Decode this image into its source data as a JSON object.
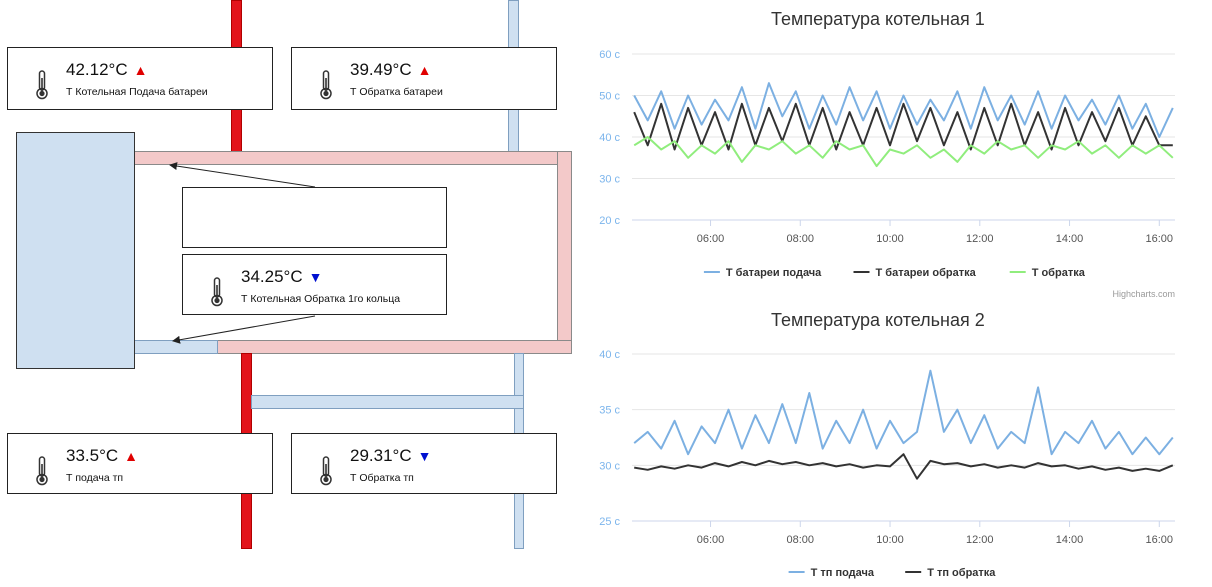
{
  "scheme": {
    "sensors": [
      {
        "value": "42.12°C",
        "trend": "up",
        "label": "Т Котельная Подача батареи"
      },
      {
        "value": "39.49°C",
        "trend": "up",
        "label": "Т Обратка батареи"
      },
      {
        "value": "34.25°C",
        "trend": "down",
        "label": "Т Котельная Обратка 1го кольца"
      },
      {
        "value": "33.5°C",
        "trend": "up",
        "label": "Т подача тп"
      },
      {
        "value": "29.31°C",
        "trend": "down",
        "label": "Т Обратка тп"
      }
    ],
    "trend_symbols": {
      "up": "▲",
      "down": "▼"
    },
    "colors": {
      "hot_pipe": "#e3141b",
      "cold_pipe": "#cfe0f1",
      "loop_pipe": "#f3c9c9",
      "boiler": "#cfe0f1",
      "trend_up": "#e00000",
      "trend_down": "#0010d0"
    }
  },
  "credits": "Highcharts.com",
  "chart_data": [
    {
      "type": "line",
      "title": "Температура котельная 1",
      "ylabel": "",
      "ylim": [
        20,
        60
      ],
      "yticks": [
        20,
        30,
        40,
        50,
        60
      ],
      "ytick_labels": [
        "20 c",
        "30 c",
        "40 c",
        "50 c",
        "60 c"
      ],
      "xlim": [
        4.25,
        16.35
      ],
      "xticks": [
        6,
        8,
        10,
        12,
        14,
        16
      ],
      "xtick_labels": [
        "06:00",
        "08:00",
        "10:00",
        "12:00",
        "14:00",
        "16:00"
      ],
      "legend": "bottom-center",
      "grid": true,
      "series": [
        {
          "name": "Т батареи подача",
          "color": "#7cb0e2",
          "x": [
            4.3,
            4.6,
            4.9,
            5.2,
            5.5,
            5.8,
            6.1,
            6.4,
            6.7,
            7.0,
            7.3,
            7.6,
            7.9,
            8.2,
            8.5,
            8.8,
            9.1,
            9.4,
            9.7,
            10.0,
            10.3,
            10.6,
            10.9,
            11.2,
            11.5,
            11.8,
            12.1,
            12.4,
            12.7,
            13.0,
            13.3,
            13.6,
            13.9,
            14.2,
            14.5,
            14.8,
            15.1,
            15.4,
            15.7,
            16.0,
            16.3
          ],
          "y": [
            50,
            44,
            51,
            42,
            50,
            43,
            49,
            44,
            52,
            42,
            53,
            45,
            51,
            42,
            50,
            43,
            52,
            44,
            51,
            42,
            50,
            43,
            49,
            44,
            51,
            42,
            52,
            44,
            50,
            43,
            51,
            42,
            50,
            44,
            49,
            43,
            50,
            42,
            48,
            40,
            47
          ]
        },
        {
          "name": "Т батареи обратка",
          "color": "#333333",
          "x": [
            4.3,
            4.6,
            4.9,
            5.2,
            5.5,
            5.8,
            6.1,
            6.4,
            6.7,
            7.0,
            7.3,
            7.6,
            7.9,
            8.2,
            8.5,
            8.8,
            9.1,
            9.4,
            9.7,
            10.0,
            10.3,
            10.6,
            10.9,
            11.2,
            11.5,
            11.8,
            12.1,
            12.4,
            12.7,
            13.0,
            13.3,
            13.6,
            13.9,
            14.2,
            14.5,
            14.8,
            15.1,
            15.4,
            15.7,
            16.0,
            16.3
          ],
          "y": [
            46,
            38,
            48,
            37,
            47,
            38,
            46,
            37,
            48,
            38,
            47,
            39,
            48,
            38,
            47,
            37,
            46,
            38,
            47,
            38,
            48,
            39,
            47,
            38,
            46,
            37,
            47,
            38,
            48,
            38,
            46,
            37,
            47,
            38,
            46,
            39,
            47,
            38,
            45,
            38,
            38
          ]
        },
        {
          "name": "Т обратка",
          "color": "#90ed7d",
          "x": [
            4.3,
            4.6,
            4.9,
            5.2,
            5.5,
            5.8,
            6.1,
            6.4,
            6.7,
            7.0,
            7.3,
            7.6,
            7.9,
            8.2,
            8.5,
            8.8,
            9.1,
            9.4,
            9.7,
            10.0,
            10.3,
            10.6,
            10.9,
            11.2,
            11.5,
            11.8,
            12.1,
            12.4,
            12.7,
            13.0,
            13.3,
            13.6,
            13.9,
            14.2,
            14.5,
            14.8,
            15.1,
            15.4,
            15.7,
            16.0,
            16.3
          ],
          "y": [
            38,
            40,
            37,
            39,
            35,
            38,
            36,
            39,
            34,
            38,
            37,
            39,
            36,
            38,
            35,
            39,
            37,
            38,
            33,
            37,
            36,
            38,
            35,
            37,
            34,
            38,
            36,
            39,
            37,
            38,
            35,
            38,
            37,
            39,
            36,
            38,
            35,
            38,
            36,
            38,
            35
          ]
        }
      ]
    },
    {
      "type": "line",
      "title": "Температура котельная 2",
      "ylabel": "",
      "ylim": [
        25,
        40
      ],
      "yticks": [
        25,
        30,
        35,
        40
      ],
      "ytick_labels": [
        "25 c",
        "30 c",
        "35 c",
        "40 c"
      ],
      "xlim": [
        4.25,
        16.35
      ],
      "xticks": [
        6,
        8,
        10,
        12,
        14,
        16
      ],
      "xtick_labels": [
        "06:00",
        "08:00",
        "10:00",
        "12:00",
        "14:00",
        "16:00"
      ],
      "legend": "bottom-center",
      "grid": true,
      "series": [
        {
          "name": "Т тп подача",
          "color": "#7cb0e2",
          "x": [
            4.3,
            4.6,
            4.9,
            5.2,
            5.5,
            5.8,
            6.1,
            6.4,
            6.7,
            7.0,
            7.3,
            7.6,
            7.9,
            8.2,
            8.5,
            8.8,
            9.1,
            9.4,
            9.7,
            10.0,
            10.3,
            10.6,
            10.9,
            11.2,
            11.5,
            11.8,
            12.1,
            12.4,
            12.7,
            13.0,
            13.3,
            13.6,
            13.9,
            14.2,
            14.5,
            14.8,
            15.1,
            15.4,
            15.7,
            16.0,
            16.3
          ],
          "y": [
            32,
            33,
            31.5,
            34,
            31,
            33.5,
            32,
            35,
            31.5,
            34.5,
            32,
            35.5,
            32,
            36.5,
            31.5,
            34,
            32,
            35,
            31.5,
            34,
            32,
            33,
            38.5,
            33,
            35,
            32,
            34.5,
            31.5,
            33,
            32,
            37,
            31,
            33,
            32,
            34,
            31.5,
            33,
            31,
            32.5,
            31,
            32.5
          ]
        },
        {
          "name": "Т тп обратка",
          "color": "#333333",
          "x": [
            4.3,
            4.6,
            4.9,
            5.2,
            5.5,
            5.8,
            6.1,
            6.4,
            6.7,
            7.0,
            7.3,
            7.6,
            7.9,
            8.2,
            8.5,
            8.8,
            9.1,
            9.4,
            9.7,
            10.0,
            10.3,
            10.6,
            10.9,
            11.2,
            11.5,
            11.8,
            12.1,
            12.4,
            12.7,
            13.0,
            13.3,
            13.6,
            13.9,
            14.2,
            14.5,
            14.8,
            15.1,
            15.4,
            15.7,
            16.0,
            16.3
          ],
          "y": [
            29.8,
            29.6,
            29.9,
            29.7,
            30.0,
            29.8,
            30.2,
            29.9,
            30.3,
            30.0,
            30.4,
            30.1,
            30.3,
            30.0,
            30.2,
            29.9,
            30.1,
            29.8,
            30.0,
            29.9,
            31.0,
            28.8,
            30.4,
            30.1,
            30.2,
            29.9,
            30.1,
            29.8,
            30.0,
            29.8,
            30.2,
            29.9,
            30.0,
            29.7,
            29.9,
            29.6,
            29.8,
            29.5,
            29.7,
            29.5,
            30.0
          ]
        }
      ]
    }
  ]
}
